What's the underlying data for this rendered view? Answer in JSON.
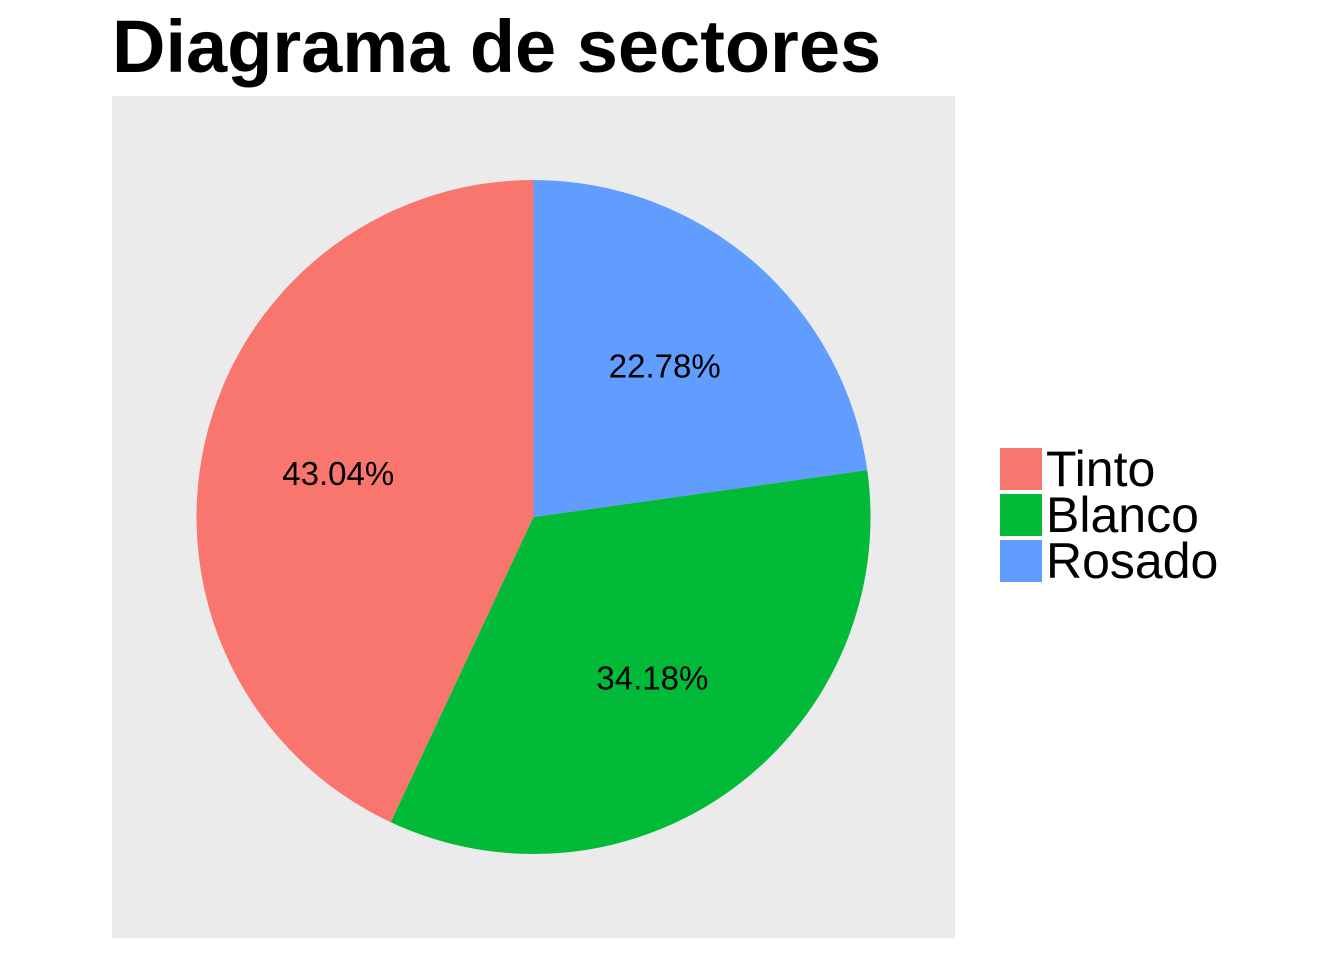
{
  "chart_data": {
    "type": "pie",
    "title": "Diagrama de sectores",
    "categories": [
      "Tinto",
      "Blanco",
      "Rosado"
    ],
    "values": [
      43.04,
      34.18,
      22.78
    ],
    "labels": [
      "43.04%",
      "34.18%",
      "22.78%"
    ],
    "colors": [
      "#F8766D",
      "#00BA38",
      "#619CFF"
    ],
    "panel_background": "#EBEBEB",
    "legend_position": "right",
    "direction": "counter-clockwise from top"
  }
}
